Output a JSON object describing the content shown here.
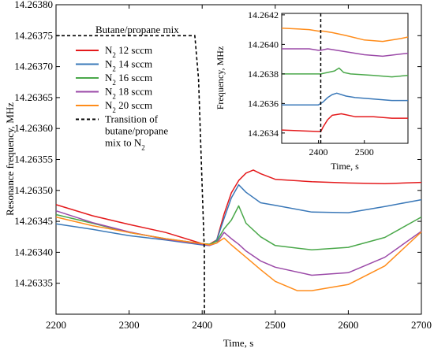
{
  "chart_data": [
    {
      "type": "line",
      "xlabel": "Time, s",
      "ylabel": "Resonance frequency, MHz",
      "xlim": [
        2200,
        2700
      ],
      "ylim": [
        14.2633,
        14.2638
      ],
      "xticks": [
        "2200",
        "2300",
        "2400",
        "2500",
        "2600",
        "2700"
      ],
      "yticks": [
        "14.26335",
        "14.26340",
        "14.26345",
        "14.26350",
        "14.26355",
        "14.26360",
        "14.26365",
        "14.26370",
        "14.26375",
        "14.26380"
      ],
      "legend_title": "Butane/propane mix",
      "legend_position": "top-left",
      "colors": {
        "n2_12": "#e41a1c",
        "n2_14": "#3a78b8",
        "n2_16": "#4aa84a",
        "n2_18": "#9b4aa8",
        "n2_20": "#ff8c1a",
        "transition": "#000000"
      },
      "series": [
        {
          "key": "n2_12",
          "name": "N₂ 12 sccm",
          "name_main": "N",
          "name_sub": "2",
          "name_rest": " 12 sccm",
          "x": [
            2200,
            2250,
            2300,
            2350,
            2400,
            2410,
            2420,
            2430,
            2440,
            2450,
            2460,
            2470,
            2480,
            2500,
            2550,
            2600,
            2650,
            2700
          ],
          "y": [
            14.263477,
            14.263459,
            14.263445,
            14.263432,
            14.263414,
            14.263413,
            14.26342,
            14.263462,
            14.263496,
            14.263516,
            14.263528,
            14.263533,
            14.263527,
            14.263518,
            14.263514,
            14.263512,
            14.263511,
            14.263513
          ]
        },
        {
          "key": "n2_14",
          "name": "N₂ 14 sccm",
          "name_main": "N",
          "name_sub": "2",
          "name_rest": " 14 sccm",
          "x": [
            2200,
            2250,
            2300,
            2350,
            2400,
            2410,
            2420,
            2430,
            2440,
            2450,
            2460,
            2480,
            2500,
            2550,
            2600,
            2650,
            2700
          ],
          "y": [
            14.263446,
            14.263437,
            14.263427,
            14.26342,
            14.263412,
            14.263411,
            14.26342,
            14.263455,
            14.263488,
            14.263509,
            14.263497,
            14.26348,
            14.263476,
            14.263465,
            14.263464,
            14.263474,
            14.263485
          ]
        },
        {
          "key": "n2_16",
          "name": "N₂ 16 sccm",
          "name_main": "N",
          "name_sub": "2",
          "name_rest": " 16 sccm",
          "x": [
            2200,
            2250,
            2300,
            2350,
            2400,
            2410,
            2420,
            2430,
            2440,
            2450,
            2460,
            2480,
            2500,
            2550,
            2600,
            2650,
            2700
          ],
          "y": [
            14.263461,
            14.263447,
            14.263432,
            14.263422,
            14.263414,
            14.263413,
            14.263418,
            14.263438,
            14.263452,
            14.263475,
            14.263447,
            14.263425,
            14.263411,
            14.263404,
            14.263408,
            14.263424,
            14.263457
          ]
        },
        {
          "key": "n2_18",
          "name": "N₂ 18 sccm",
          "name_main": "N",
          "name_sub": "2",
          "name_rest": " 18 sccm",
          "x": [
            2200,
            2250,
            2300,
            2350,
            2400,
            2410,
            2420,
            2430,
            2440,
            2450,
            2460,
            2480,
            2500,
            2550,
            2600,
            2650,
            2700
          ],
          "y": [
            14.263467,
            14.263448,
            14.263433,
            14.263421,
            14.263413,
            14.263411,
            14.263415,
            14.263432,
            14.263422,
            14.263413,
            14.263402,
            14.263386,
            14.263376,
            14.263363,
            14.263367,
            14.263392,
            14.263434
          ]
        },
        {
          "key": "n2_20",
          "name": "N₂ 20 sccm",
          "name_main": "N",
          "name_sub": "2",
          "name_rest": " 20 sccm",
          "x": [
            2200,
            2250,
            2300,
            2350,
            2400,
            2410,
            2420,
            2430,
            2440,
            2460,
            2480,
            2500,
            2530,
            2550,
            2600,
            2650,
            2700
          ],
          "y": [
            14.263457,
            14.263443,
            14.263432,
            14.263422,
            14.263414,
            14.263412,
            14.263415,
            14.263423,
            14.263412,
            14.263392,
            14.263372,
            14.263353,
            14.263338,
            14.263338,
            14.263348,
            14.263378,
            14.263433
          ]
        }
      ],
      "transition": {
        "name_lines": [
          "Transition of",
          "butane/propane",
          "mix to N"
        ],
        "name_sub": "2",
        "x": [
          2200,
          2390,
          2395,
          2403,
          2403
        ],
        "y": [
          14.26375,
          14.26375,
          14.26368,
          14.2634,
          14.2633
        ]
      }
    },
    {
      "type": "line",
      "inset": true,
      "xlabel": "Time, s",
      "ylabel": "Frequency, MHz",
      "xlim": [
        2320,
        2595
      ],
      "ylim": [
        14.26333,
        14.26421
      ],
      "xticks": [
        "2400",
        "2500"
      ],
      "yticks": [
        "14.2634",
        "14.2636",
        "14.2638",
        "14.2640",
        "14.2642"
      ],
      "transition_x": 2405,
      "series": [
        {
          "key": "n2_12",
          "x": [
            2320,
            2400,
            2405,
            2410,
            2420,
            2430,
            2450,
            2480,
            2520,
            2560,
            2595
          ],
          "y": [
            14.26342,
            14.26341,
            14.26341,
            14.26344,
            14.26349,
            14.26352,
            14.26353,
            14.26351,
            14.26351,
            14.2635,
            14.2635
          ]
        },
        {
          "key": "n2_14",
          "x": [
            2320,
            2400,
            2405,
            2410,
            2420,
            2430,
            2440,
            2460,
            2480,
            2520,
            2560,
            2595
          ],
          "y": [
            14.26359,
            14.26359,
            14.2636,
            14.26361,
            14.26364,
            14.26366,
            14.26367,
            14.26365,
            14.26364,
            14.26363,
            14.26362,
            14.26362
          ]
        },
        {
          "key": "n2_16",
          "x": [
            2320,
            2400,
            2405,
            2420,
            2435,
            2445,
            2455,
            2470,
            2520,
            2560,
            2595
          ],
          "y": [
            14.2638,
            14.2638,
            14.2638,
            14.26381,
            14.26382,
            14.26384,
            14.26381,
            14.2638,
            14.26379,
            14.26378,
            14.26379
          ]
        },
        {
          "key": "n2_18",
          "x": [
            2320,
            2380,
            2400,
            2405,
            2420,
            2440,
            2460,
            2500,
            2540,
            2595
          ],
          "y": [
            14.26397,
            14.26397,
            14.26396,
            14.26396,
            14.26397,
            14.26396,
            14.26395,
            14.26393,
            14.26392,
            14.26394
          ]
        },
        {
          "key": "n2_20",
          "x": [
            2320,
            2380,
            2400,
            2410,
            2430,
            2460,
            2500,
            2540,
            2580,
            2595
          ],
          "y": [
            14.26411,
            14.2641,
            14.26409,
            14.26409,
            14.26408,
            14.26406,
            14.26403,
            14.26402,
            14.26404,
            14.26405
          ]
        }
      ]
    }
  ]
}
